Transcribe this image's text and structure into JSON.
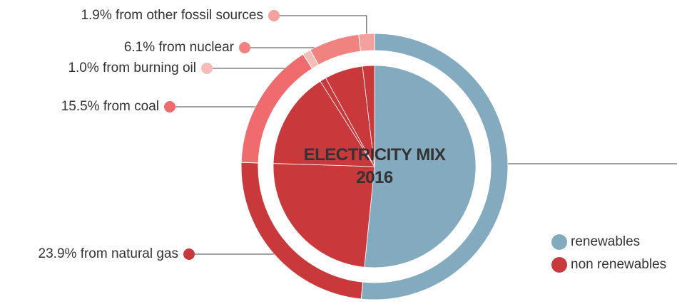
{
  "chart_data": {
    "type": "donut",
    "title": "ELECTRICITY MIX 2016",
    "values": [
      51.6,
      23.9,
      15.5,
      1.0,
      6.1,
      1.9
    ],
    "value_labels": [
      null,
      "23.9% from natural gas",
      "15.5% from coal",
      "1.0% from burning oil",
      "6.1% from nuclear",
      "1.9% from other fossil sources"
    ],
    "colors": [
      "#84aac0",
      "#c9393c",
      "#ef6b6d",
      "#f8bcb8",
      "#f08380",
      "#f4a19d"
    ],
    "inner_colors": [
      "#84aac0",
      "#c9393c",
      "#c9393c",
      "#c9393c",
      "#c9393c",
      "#c9393c"
    ],
    "legend": [
      {
        "name": "renewables",
        "color": "#84aac0"
      },
      {
        "name": "non renewables",
        "color": "#c9393c"
      }
    ]
  }
}
